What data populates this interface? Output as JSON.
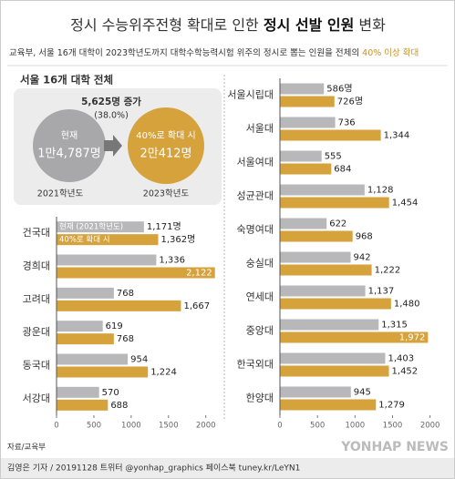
{
  "header": {
    "title_parts": [
      "정시 수능위주전형 확대로 인한 ",
      "정시 선발 인원",
      " 변화"
    ],
    "subtitle": "교육부, 서울 16개 대학이 2023학년도까지 대학수학능력시험 위주의 정시로 뽑는 인원을 전체의 ",
    "subtitle_highlight": "40% 이상 확대"
  },
  "summary": {
    "title": "서울 16개 대학 전체",
    "increase": "5,625명 증가",
    "increase_pct": "(38.0%)",
    "current_label": "현재",
    "current_value": "1만4,787명",
    "expanded_label": "40%로 확대 시",
    "expanded_value": "2만412명",
    "current_year": "2021학년도",
    "expanded_year": "2023학년도"
  },
  "chart_data": [
    {
      "type": "bar",
      "orientation": "horizontal",
      "legend": "inside-first-row",
      "categories": [
        "건국대",
        "경희대",
        "고려대",
        "광운대",
        "동국대",
        "서강대"
      ],
      "series": [
        {
          "name": "현재 (2021학년도)",
          "color": "#b8b8ba",
          "values": [
            1171,
            1336,
            768,
            619,
            954,
            570
          ],
          "value_labels": [
            "1,171명",
            "1,336",
            "768",
            "619",
            "954",
            "570"
          ]
        },
        {
          "name": "40%로 확대 시",
          "color": "#d5a23c",
          "values": [
            1362,
            2122,
            1667,
            768,
            1224,
            688
          ],
          "value_labels": [
            "1,362명",
            "2,122",
            "1,667",
            "768",
            "1,224",
            "688"
          ]
        }
      ],
      "xlim": [
        0,
        2150
      ],
      "xticks": [
        0,
        500,
        1000,
        1500,
        2000
      ],
      "grid": false
    },
    {
      "type": "bar",
      "orientation": "horizontal",
      "categories": [
        "서울시립대",
        "서울대",
        "서울여대",
        "성균관대",
        "숙명여대",
        "숭실대",
        "연세대",
        "중앙대",
        "한국외대",
        "한양대"
      ],
      "series": [
        {
          "color": "#b8b8ba",
          "values": [
            586,
            736,
            555,
            1128,
            622,
            942,
            1137,
            1315,
            1403,
            945
          ],
          "value_labels": [
            "586명",
            "736",
            "555",
            "1,128",
            "622",
            "942",
            "1,137",
            "1,315",
            "1,403",
            "945"
          ]
        },
        {
          "color": "#d5a23c",
          "values": [
            726,
            1344,
            684,
            1454,
            968,
            1222,
            1480,
            1972,
            1452,
            1279
          ],
          "value_labels": [
            "726명",
            "1,344",
            "684",
            "1,454",
            "968",
            "1,222",
            "1,480",
            "1,972",
            "1,452",
            "1,279"
          ]
        }
      ],
      "xlim": [
        0,
        2150
      ],
      "xticks": [
        0,
        500,
        1000,
        1500,
        2000
      ],
      "grid": false
    }
  ],
  "footer": {
    "source": "자료/교육부",
    "credit": "김영은 기자 / 20191128 트위터 @yonhap_graphics 페이스북 tuney.kr/LeYN1",
    "brand": "YONHAP NEWS"
  }
}
